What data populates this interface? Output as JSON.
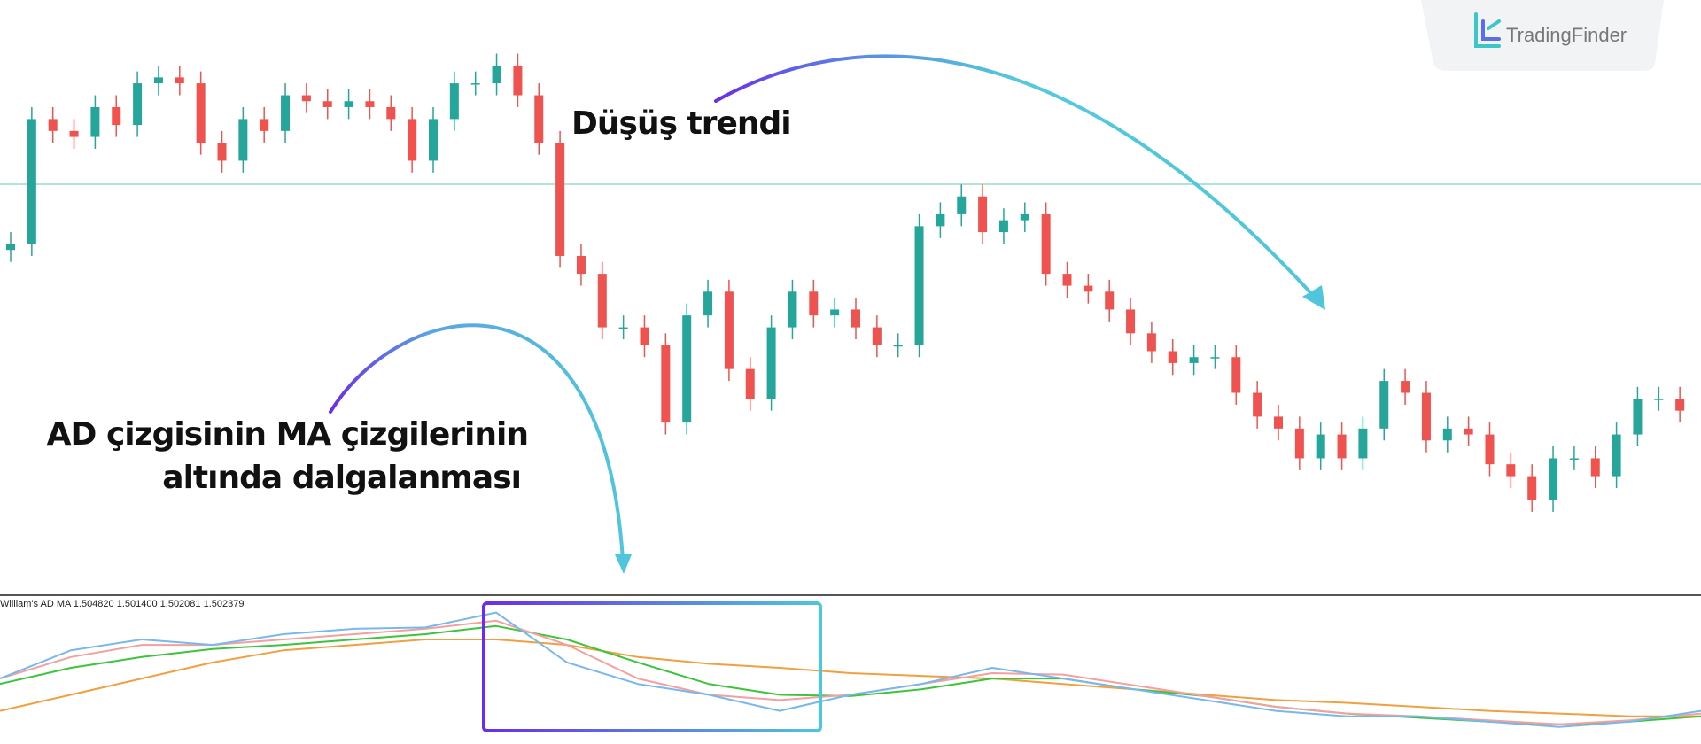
{
  "logo": {
    "text": "TradingFinder"
  },
  "annotations": {
    "trend": "Düşüş trendi",
    "ad_line1": "AD çizgisinin MA çizgilerinin",
    "ad_line2": "altında dalgalanması"
  },
  "chart_data": [
    {
      "type": "candlestick",
      "up_color": "#26a69a",
      "down_color": "#ef5350",
      "ylim": [
        0,
        100
      ],
      "open": [
        58,
        59,
        80,
        78,
        77,
        82,
        79,
        86,
        87,
        86,
        76,
        73,
        80,
        78,
        84,
        83,
        82,
        83,
        82,
        80,
        73,
        80,
        86,
        86,
        89,
        84,
        76,
        57,
        54,
        45,
        45,
        42,
        29,
        47,
        51,
        38,
        33,
        45,
        51,
        47,
        48,
        45,
        42,
        42,
        62,
        64,
        67,
        61,
        63,
        64,
        54,
        52,
        51,
        48,
        44,
        41,
        39,
        40,
        40,
        34,
        30,
        28,
        23,
        27,
        23,
        28,
        36,
        34,
        26,
        28,
        27,
        22,
        20,
        16,
        23,
        23,
        20,
        27,
        33,
        33
      ],
      "high": [
        61,
        82,
        82,
        80,
        84,
        84,
        88,
        89,
        89,
        88,
        78,
        82,
        82,
        86,
        86,
        85,
        85,
        85,
        84,
        82,
        82,
        88,
        88,
        91,
        91,
        86,
        78,
        59,
        56,
        47,
        47,
        44,
        49,
        53,
        53,
        40,
        47,
        53,
        53,
        50,
        50,
        47,
        44,
        64,
        66,
        69,
        69,
        65,
        66,
        66,
        56,
        54,
        53,
        50,
        46,
        43,
        42,
        42,
        42,
        36,
        32,
        30,
        29,
        29,
        30,
        38,
        38,
        36,
        30,
        30,
        29,
        24,
        22,
        25,
        25,
        25,
        29,
        35,
        35,
        35
      ],
      "low": [
        56,
        57,
        76,
        75,
        75,
        77,
        77,
        84,
        84,
        74,
        71,
        71,
        76,
        76,
        81,
        80,
        80,
        80,
        78,
        71,
        71,
        78,
        84,
        84,
        82,
        74,
        55,
        52,
        43,
        43,
        40,
        27,
        27,
        45,
        36,
        31,
        31,
        43,
        45,
        45,
        43,
        40,
        40,
        40,
        60,
        62,
        59,
        59,
        61,
        52,
        50,
        49,
        46,
        42,
        39,
        37,
        37,
        38,
        32,
        28,
        26,
        21,
        21,
        21,
        21,
        26,
        32,
        24,
        24,
        25,
        20,
        18,
        14,
        14,
        21,
        18,
        18,
        25,
        31,
        29
      ],
      "close": [
        59,
        80,
        78,
        77,
        82,
        79,
        86,
        87,
        86,
        76,
        73,
        80,
        78,
        84,
        83,
        82,
        83,
        82,
        80,
        73,
        80,
        86,
        86,
        89,
        84,
        76,
        57,
        54,
        45,
        45,
        42,
        29,
        47,
        51,
        38,
        33,
        45,
        51,
        47,
        48,
        45,
        42,
        42,
        62,
        64,
        67,
        61,
        63,
        64,
        54,
        52,
        51,
        48,
        44,
        41,
        39,
        40,
        40,
        34,
        30,
        28,
        23,
        27,
        23,
        28,
        36,
        34,
        26,
        28,
        27,
        22,
        20,
        16,
        23,
        23,
        20,
        27,
        33,
        33,
        31
      ]
    },
    {
      "type": "line",
      "title": "William's AD MA 1.504820 1.501400 1.502081 1.502379",
      "ylim": [
        0,
        100
      ],
      "series": [
        {
          "color": "#f0a040",
          "values": [
            20,
            32,
            44,
            56,
            65,
            69,
            73,
            73,
            69,
            60,
            55,
            52,
            48,
            46,
            44,
            40,
            36,
            32,
            28,
            26,
            23,
            20,
            18,
            16,
            16
          ]
        },
        {
          "color": "#3cc43c",
          "values": [
            40,
            52,
            60,
            66,
            69,
            73,
            77,
            83,
            73,
            56,
            40,
            32,
            31,
            36,
            44,
            44,
            36,
            31,
            23,
            18,
            15,
            12,
            10,
            12,
            16
          ]
        },
        {
          "color": "#f4a0a0",
          "values": [
            44,
            60,
            69,
            69,
            73,
            77,
            81,
            87,
            69,
            44,
            32,
            28,
            32,
            40,
            48,
            47,
            39,
            31,
            23,
            18,
            16,
            13,
            10,
            13,
            18
          ]
        },
        {
          "color": "#78b8ec",
          "values": [
            44,
            65,
            73,
            69,
            77,
            81,
            82,
            93,
            56,
            40,
            32,
            20,
            32,
            40,
            52,
            44,
            36,
            28,
            20,
            16,
            16,
            12,
            8,
            12,
            20
          ]
        }
      ]
    }
  ]
}
